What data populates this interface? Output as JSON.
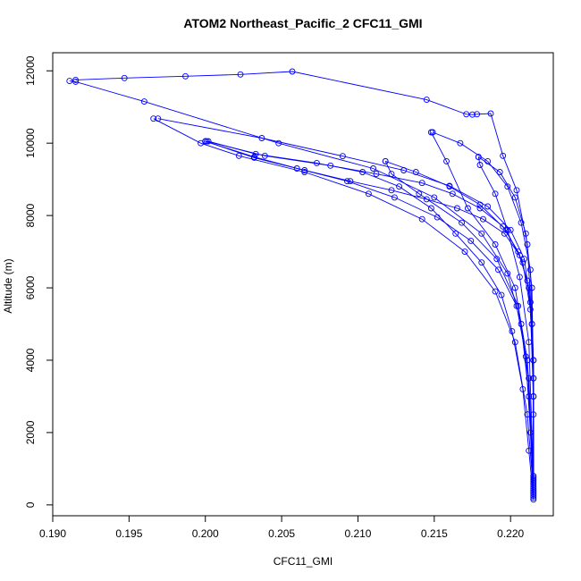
{
  "chart_data": {
    "type": "line",
    "title": "ATOM2 Northeast_Pacific_2 CFC11_GMI",
    "xlabel": "CFC11_GMI",
    "ylabel": "Altitude (m)",
    "xlim": [
      0.19,
      0.2228
    ],
    "ylim": [
      -300,
      12500
    ],
    "x_ticks": [
      {
        "value": 0.19,
        "label": "0.190"
      },
      {
        "value": 0.195,
        "label": "0.195"
      },
      {
        "value": 0.2,
        "label": "0.200"
      },
      {
        "value": 0.205,
        "label": "0.205"
      },
      {
        "value": 0.21,
        "label": "0.210"
      },
      {
        "value": 0.215,
        "label": "0.215"
      },
      {
        "value": 0.22,
        "label": "0.220"
      }
    ],
    "y_ticks": [
      {
        "value": 0,
        "label": "0"
      },
      {
        "value": 2000,
        "label": "2000"
      },
      {
        "value": 4000,
        "label": "4000"
      },
      {
        "value": 6000,
        "label": "6000"
      },
      {
        "value": 8000,
        "label": "8000"
      },
      {
        "value": 10000,
        "label": "10000"
      },
      {
        "value": 12000,
        "label": "12000"
      }
    ],
    "color": "#0000ff",
    "marker": "open-circle",
    "grid": false,
    "legend": "none",
    "series": [
      {
        "x": [
          0.2215,
          0.2212,
          0.2208,
          0.2201,
          0.2194,
          0.2181,
          0.2164,
          0.2148,
          0.2127,
          0.2103,
          0.2073,
          0.2033,
          0.2002
        ],
        "y": [
          150,
          1500,
          3200,
          4800,
          5800,
          6700,
          7500,
          8200,
          8800,
          9200,
          9450,
          9700,
          10050
        ]
      },
      {
        "x": [
          0.2001,
          0.2039,
          0.2082,
          0.2112,
          0.2142,
          0.2162,
          0.218,
          0.2195,
          0.2205,
          0.2211,
          0.2214,
          0.2215,
          0.2215
        ],
        "y": [
          10050,
          9650,
          9380,
          9150,
          8900,
          8600,
          8200,
          7700,
          7000,
          6200,
          5000,
          3000,
          200
        ]
      },
      {
        "x": [
          0.2215,
          0.2213,
          0.221,
          0.2204,
          0.2192,
          0.2174,
          0.2152,
          0.2124,
          0.2093,
          0.206,
          0.2032,
          0.2
        ],
        "y": [
          250,
          2000,
          4100,
          5500,
          6500,
          7300,
          7950,
          8500,
          8950,
          9300,
          9600,
          10050
        ]
      },
      {
        "x": [
          0.2,
          0.2032,
          0.2065,
          0.2095,
          0.2122,
          0.2145,
          0.2165,
          0.2182,
          0.2196,
          0.2206,
          0.2212,
          0.2215,
          0.2215
        ],
        "y": [
          10050,
          9620,
          9250,
          8950,
          8700,
          8450,
          8200,
          7900,
          7500,
          6900,
          6000,
          4000,
          300
        ]
      },
      {
        "x": [
          0.2215,
          0.2211,
          0.2203,
          0.219,
          0.217,
          0.2142,
          0.2107,
          0.2065,
          0.2022,
          0.1997,
          0.1966
        ],
        "y": [
          350,
          2500,
          4500,
          5900,
          7000,
          7900,
          8600,
          9200,
          9650,
          10000,
          10680
        ]
      },
      {
        "x": [
          0.1969,
          0.2037,
          0.209,
          0.213,
          0.216,
          0.2185,
          0.22,
          0.2209,
          0.2213,
          0.2215,
          0.2215
        ],
        "y": [
          10680,
          10140,
          9640,
          9250,
          8820,
          8250,
          7600,
          6800,
          5600,
          3500,
          400
        ]
      },
      {
        "x": [
          0.2215,
          0.2212,
          0.2207,
          0.2198,
          0.2181,
          0.215,
          0.211,
          0.2048,
          0.196,
          0.1915,
          0.1911
        ],
        "y": [
          450,
          3000,
          5000,
          6400,
          7500,
          8500,
          9300,
          10000,
          11150,
          11700,
          11720
        ]
      },
      {
        "x": [
          0.1915,
          0.1947,
          0.1987,
          0.2023,
          0.2057,
          0.2145,
          0.2171,
          0.2175,
          0.2178,
          0.2187,
          0.2195,
          0.2204,
          0.2211,
          0.2214,
          0.2215,
          0.2215
        ],
        "y": [
          11750,
          11800,
          11850,
          11900,
          11980,
          11200,
          10800,
          10790,
          10800,
          10820,
          9650,
          8700,
          7200,
          5000,
          2500,
          500
        ]
      },
      {
        "x": [
          0.2215,
          0.2212,
          0.2205,
          0.2191,
          0.2168,
          0.214,
          0.2122,
          0.2118
        ],
        "y": [
          550,
          3500,
          5500,
          6800,
          7800,
          8600,
          9150,
          9500
        ]
      },
      {
        "x": [
          0.2118,
          0.2138,
          0.216,
          0.218,
          0.2197,
          0.2208,
          0.2213,
          0.2215,
          0.2215
        ],
        "y": [
          9500,
          9200,
          8800,
          8300,
          7600,
          6700,
          5400,
          3000,
          600
        ]
      },
      {
        "x": [
          0.2215,
          0.2211,
          0.2203,
          0.219,
          0.2172,
          0.2158,
          0.2148
        ],
        "y": [
          650,
          4000,
          6000,
          7200,
          8200,
          9500,
          10300
        ]
      },
      {
        "x": [
          0.2149,
          0.2167,
          0.2185,
          0.2198,
          0.2207,
          0.2213,
          0.2215,
          0.2215
        ],
        "y": [
          10300,
          10000,
          9500,
          8800,
          7800,
          6500,
          4000,
          700
        ]
      },
      {
        "x": [
          0.2215,
          0.2212,
          0.2206,
          0.2198,
          0.219,
          0.218,
          0.2179
        ],
        "y": [
          750,
          4500,
          6300,
          7600,
          8600,
          9400,
          9620
        ]
      },
      {
        "x": [
          0.2179,
          0.2193,
          0.2203,
          0.221,
          0.2214,
          0.2215,
          0.2215
        ],
        "y": [
          9620,
          9200,
          8500,
          7500,
          6000,
          3500,
          800
        ]
      }
    ]
  }
}
